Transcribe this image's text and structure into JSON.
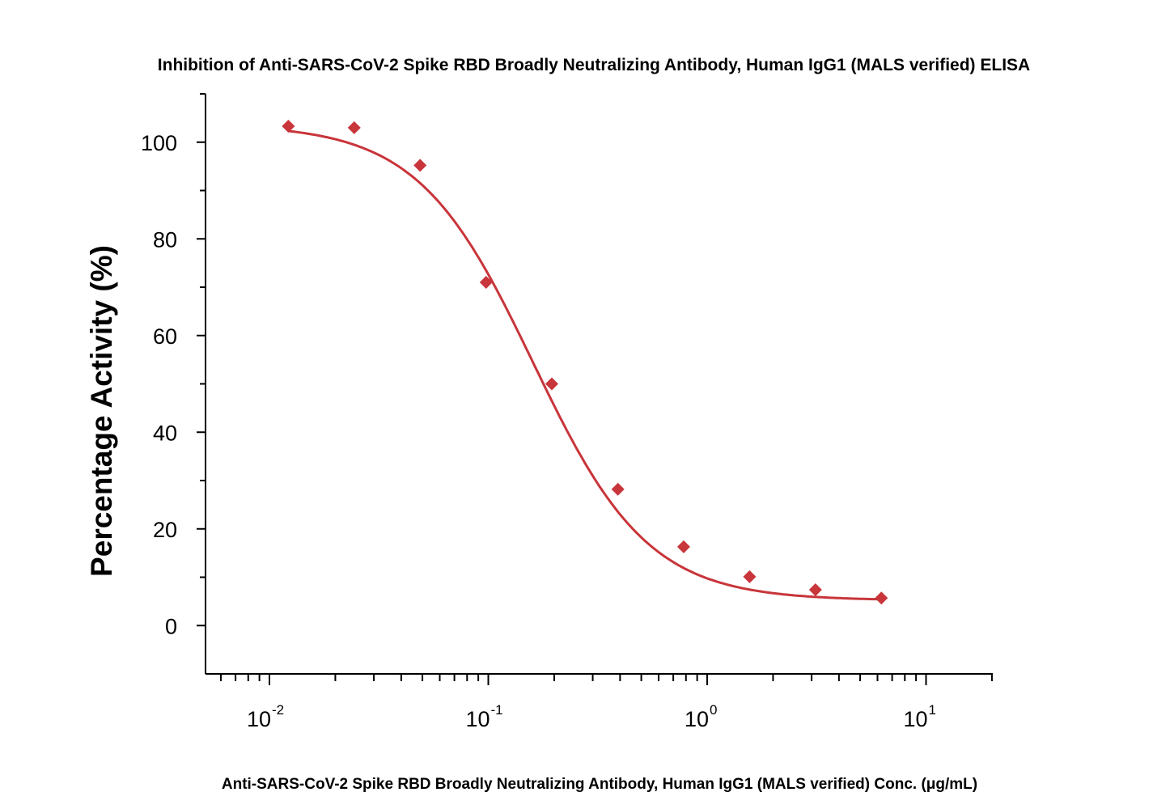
{
  "chart_data": {
    "type": "scatter",
    "title": "Inhibition of Anti-SARS-CoV-2 Spike RBD Broadly Neutralizing Antibody, Human IgG1 (MALS verified) ELISA",
    "xlabel": "Anti-SARS-CoV-2 Spike RBD Broadly Neutralizing Antibody, Human IgG1 (MALS verified) Conc. (μg/mL)",
    "ylabel": "Percentage Activity (%)",
    "x_scale": "log",
    "xlim": [
      0.005,
      20
    ],
    "ylim": [
      -10,
      110
    ],
    "x_ticks": [
      {
        "value": 0.01,
        "base": "10",
        "exp": "-2"
      },
      {
        "value": 0.1,
        "base": "10",
        "exp": "-1"
      },
      {
        "value": 1,
        "base": "10",
        "exp": "0"
      },
      {
        "value": 10,
        "base": "10",
        "exp": "1"
      }
    ],
    "y_ticks": [
      0,
      20,
      40,
      60,
      80,
      100
    ],
    "grid": false,
    "legend": "none",
    "series": [
      {
        "color": "#c8353a",
        "marker": "diamond",
        "x": [
          0.0122,
          0.0244,
          0.0488,
          0.0977,
          0.195,
          0.391,
          0.781,
          1.5625,
          3.125,
          6.25
        ],
        "y": [
          103.3,
          103.0,
          95.2,
          71.0,
          50.0,
          28.2,
          16.3,
          10.1,
          7.4,
          5.7
        ]
      }
    ],
    "fit_curve": {
      "color": "#c8353a",
      "model": "4PL",
      "top": 103.7,
      "bottom": 5.2,
      "ec50": 0.16,
      "hill": 1.65
    }
  }
}
